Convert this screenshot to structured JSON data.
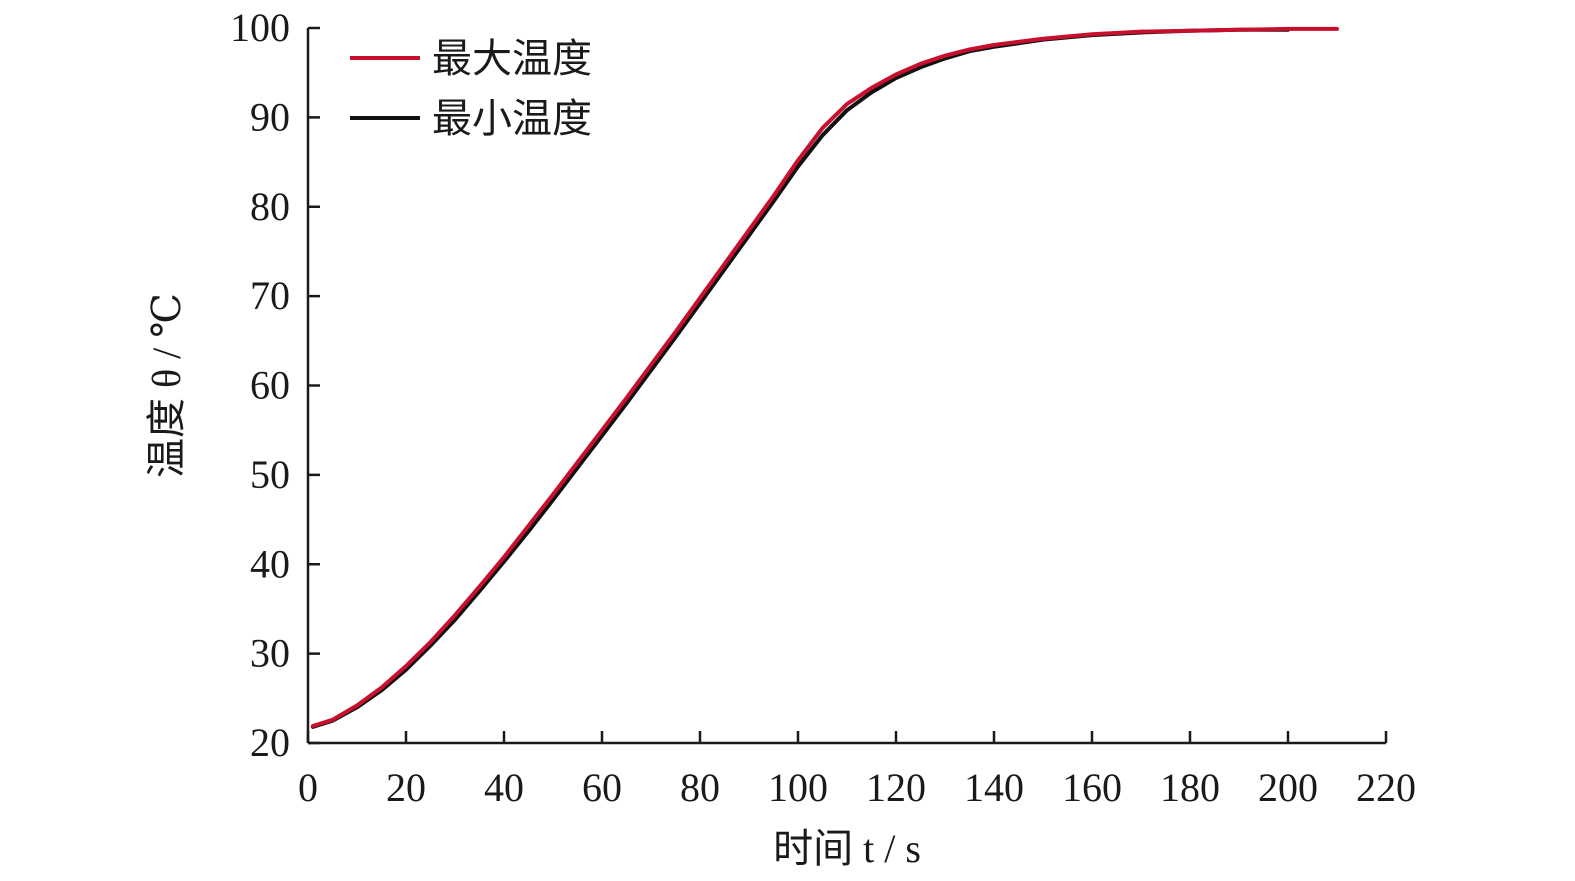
{
  "chart_data": {
    "type": "line",
    "xlabel": "时间 t / s",
    "ylabel": "温度 θ / ℃",
    "xlim": [
      0,
      220
    ],
    "ylim": [
      20,
      100
    ],
    "xticks": [
      "0",
      "20",
      "40",
      "60",
      "80",
      "100",
      "120",
      "140",
      "160",
      "180",
      "200",
      "220"
    ],
    "yticks": [
      "20",
      "30",
      "40",
      "50",
      "60",
      "70",
      "80",
      "90",
      "100"
    ],
    "grid": false,
    "legend": "top-left",
    "series": [
      {
        "name": "最大温度",
        "color": "#c8102e",
        "x": [
          1,
          5,
          10,
          15,
          20,
          25,
          30,
          35,
          40,
          45,
          50,
          55,
          60,
          65,
          70,
          75,
          80,
          85,
          90,
          95,
          100,
          105,
          110,
          115,
          120,
          125,
          130,
          135,
          140,
          150,
          160,
          170,
          180,
          190,
          200,
          210
        ],
        "values": [
          21.9,
          22.6,
          24.2,
          26.2,
          28.6,
          31.3,
          34.3,
          37.5,
          40.8,
          44.3,
          47.8,
          51.4,
          55.0,
          58.6,
          62.3,
          66.0,
          69.8,
          73.6,
          77.4,
          81.2,
          85.2,
          88.8,
          91.5,
          93.3,
          94.8,
          96.0,
          96.9,
          97.6,
          98.1,
          98.8,
          99.3,
          99.6,
          99.7,
          99.8,
          99.9,
          99.9
        ]
      },
      {
        "name": "最小温度",
        "color": "#111111",
        "x": [
          1,
          5,
          10,
          15,
          20,
          25,
          30,
          35,
          40,
          45,
          50,
          55,
          60,
          65,
          70,
          75,
          80,
          85,
          90,
          95,
          100,
          105,
          110,
          115,
          120,
          125,
          130,
          135,
          140,
          150,
          160,
          170,
          180,
          190,
          200
        ],
        "values": [
          21.8,
          22.5,
          24.0,
          25.9,
          28.2,
          30.9,
          33.8,
          37.0,
          40.3,
          43.7,
          47.2,
          50.8,
          54.4,
          58.0,
          61.7,
          65.4,
          69.2,
          73.0,
          76.8,
          80.6,
          84.5,
          88.0,
          90.8,
          92.8,
          94.4,
          95.6,
          96.6,
          97.4,
          97.9,
          98.7,
          99.2,
          99.5,
          99.7,
          99.8,
          99.8
        ]
      }
    ]
  }
}
